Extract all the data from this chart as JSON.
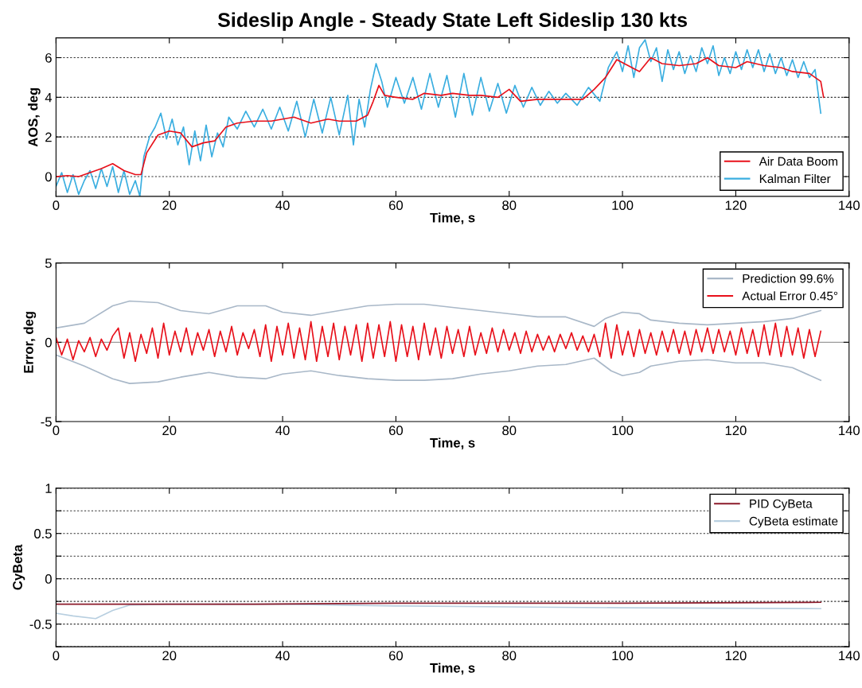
{
  "chart_data": [
    {
      "type": "line",
      "title": "Sideslip Angle - Steady State Left Sideslip 130 kts",
      "xlabel": "Time, s",
      "ylabel": "AOS, deg",
      "xlim": [
        0,
        140
      ],
      "xticks": [
        0,
        20,
        40,
        60,
        80,
        100,
        120,
        140
      ],
      "ylim": [
        -1,
        7
      ],
      "yticks": [
        0,
        2,
        4,
        6
      ],
      "grid": "y",
      "legend": "bottom right",
      "series": [
        {
          "name": "Kalman Filter",
          "color": "#3aaee0",
          "x": [
            0,
            1,
            2,
            3,
            4,
            5,
            6,
            7,
            8,
            9,
            10,
            11,
            12,
            13,
            14,
            14.8,
            15.5,
            16.5,
            17.5,
            18.5,
            19.5,
            20.5,
            21.5,
            22.5,
            23.5,
            24.5,
            25.5,
            26.5,
            27.5,
            28.5,
            29.5,
            30.5,
            32,
            33.5,
            35,
            36.5,
            38,
            39.5,
            41,
            42.5,
            44,
            45.5,
            47,
            48.5,
            50,
            51.5,
            52.5,
            53.5,
            54.5,
            55.5,
            56.5,
            57.5,
            58.5,
            60,
            61.5,
            63,
            64.5,
            66,
            67.5,
            69,
            70.5,
            72,
            73.5,
            75,
            76.5,
            78,
            79.5,
            81,
            82.5,
            84,
            85.5,
            87,
            88.5,
            90,
            92,
            94,
            96,
            97.5,
            99,
            100,
            101,
            102,
            103,
            104,
            105,
            106,
            107,
            108,
            109,
            110,
            111,
            112,
            113,
            114,
            115,
            116,
            117,
            118,
            119,
            120,
            121,
            122,
            123,
            124,
            125,
            126,
            127,
            128,
            129,
            130,
            131,
            132,
            133,
            134,
            135
          ],
          "values": [
            -0.5,
            0.2,
            -0.8,
            0.1,
            -0.9,
            -0.2,
            0.3,
            -0.6,
            0.4,
            -0.5,
            0.5,
            -0.8,
            0.3,
            -0.9,
            -0.2,
            -1,
            1.0,
            2.0,
            2.5,
            3.2,
            1.9,
            2.9,
            1.6,
            2.5,
            0.6,
            2.3,
            0.8,
            2.6,
            1.0,
            2.2,
            1.5,
            3.0,
            2.4,
            3.3,
            2.5,
            3.4,
            2.4,
            3.5,
            2.3,
            3.8,
            2.0,
            3.9,
            2.2,
            4.0,
            2.1,
            4.1,
            1.6,
            3.9,
            2.5,
            4.4,
            5.7,
            4.8,
            3.5,
            5.0,
            3.7,
            5.0,
            3.4,
            5.2,
            3.5,
            5.1,
            3.0,
            5.2,
            3.1,
            5.0,
            3.3,
            4.7,
            3.2,
            4.6,
            3.5,
            4.5,
            3.6,
            4.3,
            3.7,
            4.2,
            3.6,
            4.5,
            3.8,
            5.5,
            6.3,
            5.3,
            6.6,
            5.0,
            6.5,
            6.9,
            5.8,
            6.5,
            4.8,
            6.4,
            5.4,
            6.3,
            5.2,
            6.1,
            5.3,
            6.5,
            5.7,
            6.6,
            5.1,
            6.0,
            5.2,
            6.3,
            5.4,
            6.4,
            5.5,
            6.4,
            5.3,
            6.2,
            5.2,
            6.0,
            5.1,
            5.9,
            5.0,
            5.8,
            5.0,
            5.4,
            3.2
          ]
        },
        {
          "name": "Air Data Boom",
          "color": "#e8101a",
          "x": [
            0,
            2,
            4,
            6,
            8,
            10,
            12,
            14,
            15,
            16,
            18,
            20,
            22,
            24,
            26,
            28,
            30,
            32,
            35,
            38,
            40,
            42,
            45,
            48,
            50,
            53,
            55,
            56,
            57,
            58,
            60,
            63,
            65,
            68,
            70,
            73,
            75,
            78,
            80,
            82,
            85,
            88,
            90,
            93,
            95,
            97,
            99,
            101,
            103,
            105,
            107,
            110,
            113,
            115,
            117,
            120,
            122,
            125,
            128,
            130,
            133,
            135,
            135.5
          ],
          "values": [
            0.0,
            0.05,
            0.0,
            0.2,
            0.4,
            0.65,
            0.3,
            0.1,
            0.1,
            1.2,
            2.1,
            2.3,
            2.2,
            1.5,
            1.7,
            1.8,
            2.5,
            2.7,
            2.8,
            2.8,
            2.9,
            3.0,
            2.7,
            2.9,
            2.8,
            2.8,
            3.1,
            3.8,
            4.6,
            4.1,
            4.0,
            3.9,
            4.2,
            4.1,
            4.2,
            4.1,
            4.1,
            4.0,
            4.4,
            3.8,
            3.9,
            3.9,
            3.9,
            3.9,
            4.4,
            5.0,
            5.9,
            5.6,
            5.3,
            6.0,
            5.7,
            5.6,
            5.7,
            6.0,
            5.6,
            5.5,
            5.8,
            5.6,
            5.5,
            5.3,
            5.2,
            4.8,
            4.0
          ]
        }
      ]
    },
    {
      "type": "line",
      "xlabel": "Time, s",
      "ylabel": "Error, deg",
      "xlim": [
        0,
        140
      ],
      "xticks": [
        0,
        20,
        40,
        60,
        80,
        100,
        120,
        140
      ],
      "ylim": [
        -5,
        5
      ],
      "yticks": [
        -5,
        0,
        5
      ],
      "legend": "top right",
      "ref_lines": [
        {
          "axis": "y",
          "value": 0,
          "color": "#9a9a9a"
        }
      ],
      "series": [
        {
          "name": "Actual Error 0.45°",
          "color": "#e8101a",
          "x": [
            0,
            1,
            2,
            3,
            4,
            5,
            6,
            7,
            8,
            9,
            10,
            11,
            12,
            13,
            14,
            15,
            16,
            17,
            18,
            19,
            20,
            21,
            22,
            23,
            24,
            25,
            26,
            27,
            28,
            29,
            30,
            31,
            32,
            33,
            34,
            35,
            36,
            37,
            38,
            39,
            40,
            41,
            42,
            43,
            44,
            45,
            46,
            47,
            48,
            49,
            50,
            51,
            52,
            53,
            54,
            55,
            56,
            57,
            58,
            59,
            60,
            61,
            62,
            63,
            64,
            65,
            66,
            67,
            68,
            69,
            70,
            71,
            72,
            73,
            74,
            75,
            76,
            77,
            78,
            79,
            80,
            81,
            82,
            83,
            84,
            85,
            86,
            87,
            88,
            89,
            90,
            91,
            92,
            93,
            94,
            95,
            96,
            97,
            98,
            99,
            100,
            101,
            102,
            103,
            104,
            105,
            106,
            107,
            108,
            109,
            110,
            111,
            112,
            113,
            114,
            115,
            116,
            117,
            118,
            119,
            120,
            121,
            122,
            123,
            124,
            125,
            126,
            127,
            128,
            129,
            130,
            131,
            132,
            133,
            134,
            135
          ],
          "values": [
            0.3,
            -0.8,
            0.2,
            -1.1,
            0.1,
            -0.6,
            0.3,
            -0.9,
            0.2,
            -0.5,
            0.4,
            0.9,
            -1.0,
            0.6,
            -1.2,
            0.5,
            -0.7,
            0.9,
            -1.0,
            1.2,
            -0.8,
            0.7,
            -0.6,
            0.9,
            -0.8,
            0.6,
            -0.5,
            0.8,
            -0.9,
            0.7,
            -0.6,
            1.0,
            -0.8,
            0.6,
            -0.4,
            0.8,
            -0.9,
            1.1,
            -1.2,
            1.0,
            -0.8,
            1.2,
            -1.0,
            0.9,
            -1.1,
            1.3,
            -1.2,
            1.0,
            -0.9,
            1.2,
            -1.1,
            1.0,
            -0.8,
            1.1,
            -1.2,
            1.2,
            -1.0,
            1.1,
            -0.9,
            1.3,
            -1.2,
            1.1,
            -0.9,
            1.0,
            -1.1,
            1.2,
            -0.8,
            0.9,
            -1.0,
            1.0,
            -0.7,
            0.8,
            -0.9,
            1.0,
            -0.8,
            0.6,
            -0.7,
            0.9,
            -0.6,
            0.8,
            -0.5,
            0.6,
            -0.7,
            0.7,
            -0.6,
            0.5,
            -0.5,
            0.4,
            -0.6,
            0.5,
            -0.4,
            0.6,
            -0.5,
            0.4,
            -0.6,
            0.5,
            -0.9,
            1.2,
            -1.0,
            1.1,
            -0.8,
            0.7,
            -0.9,
            0.8,
            -0.7,
            0.6,
            -0.8,
            0.7,
            -0.6,
            0.8,
            -0.7,
            0.7,
            -0.8,
            0.8,
            -0.6,
            0.9,
            -0.7,
            0.8,
            -0.6,
            0.7,
            -0.8,
            0.9,
            -0.7,
            0.8,
            -0.9,
            1.1,
            -0.8,
            1.2,
            -0.9,
            1.0,
            -0.8,
            0.9,
            -1.0,
            0.8,
            -0.9,
            0.7
          ]
        },
        {
          "name": "Prediction 99.6%",
          "color": "#a9b8c8",
          "x": [
            0,
            5,
            10,
            13,
            18,
            22,
            27,
            32,
            37,
            40,
            45,
            50,
            55,
            60,
            65,
            70,
            75,
            80,
            85,
            90,
            95,
            97,
            100,
            103,
            105,
            110,
            115,
            120,
            125,
            130,
            135
          ],
          "values": [
            0.9,
            1.2,
            2.3,
            2.6,
            2.5,
            2.0,
            1.8,
            2.3,
            2.3,
            1.9,
            1.7,
            2.0,
            2.3,
            2.4,
            2.4,
            2.2,
            2.0,
            1.8,
            1.6,
            1.6,
            1.0,
            1.5,
            1.9,
            1.8,
            1.4,
            1.2,
            1.1,
            1.2,
            1.3,
            1.5,
            2.0
          ]
        },
        {
          "color": "#a9b8c8",
          "x": [
            0,
            5,
            10,
            13,
            18,
            22,
            27,
            32,
            37,
            40,
            45,
            50,
            55,
            60,
            65,
            70,
            75,
            80,
            85,
            90,
            95,
            98,
            100,
            103,
            105,
            110,
            115,
            120,
            125,
            130,
            135
          ],
          "values": [
            -0.8,
            -1.5,
            -2.3,
            -2.6,
            -2.5,
            -2.2,
            -1.9,
            -2.2,
            -2.3,
            -2.0,
            -1.8,
            -2.1,
            -2.3,
            -2.4,
            -2.4,
            -2.3,
            -2.0,
            -1.8,
            -1.5,
            -1.4,
            -1.0,
            -1.8,
            -2.1,
            -1.9,
            -1.5,
            -1.2,
            -1.1,
            -1.3,
            -1.3,
            -1.6,
            -2.4
          ]
        }
      ]
    },
    {
      "type": "line",
      "xlabel": "Time, s",
      "ylabel": "CyBeta",
      "xlim": [
        0,
        140
      ],
      "xticks": [
        0,
        20,
        40,
        60,
        80,
        100,
        120,
        140
      ],
      "ylim": [
        -0.75,
        1
      ],
      "yticks": [
        {
          "value": -0.75,
          "label": null
        },
        {
          "value": -0.5,
          "label": "-0.5"
        },
        {
          "value": -0.25,
          "label": null
        },
        0,
        {
          "value": 0.25,
          "label": null
        },
        {
          "value": 0.5,
          "label": "0.5"
        },
        {
          "value": 0.75,
          "label": null
        },
        1
      ],
      "grid": "y",
      "legend": "top right",
      "series": [
        {
          "name": "CyBeta estimate",
          "color": "#b8cfe0",
          "x": [
            0,
            3,
            7,
            10,
            13,
            20,
            40,
            60,
            80,
            100,
            135
          ],
          "values": [
            -0.38,
            -0.41,
            -0.44,
            -0.35,
            -0.29,
            -0.28,
            -0.28,
            -0.3,
            -0.31,
            -0.32,
            -0.33
          ]
        },
        {
          "name": "PID CyBeta",
          "color": "#8b1a2a",
          "x": [
            0,
            13,
            35,
            60,
            100,
            135
          ],
          "values": [
            -0.28,
            -0.28,
            -0.28,
            -0.27,
            -0.27,
            -0.26
          ]
        }
      ]
    }
  ]
}
